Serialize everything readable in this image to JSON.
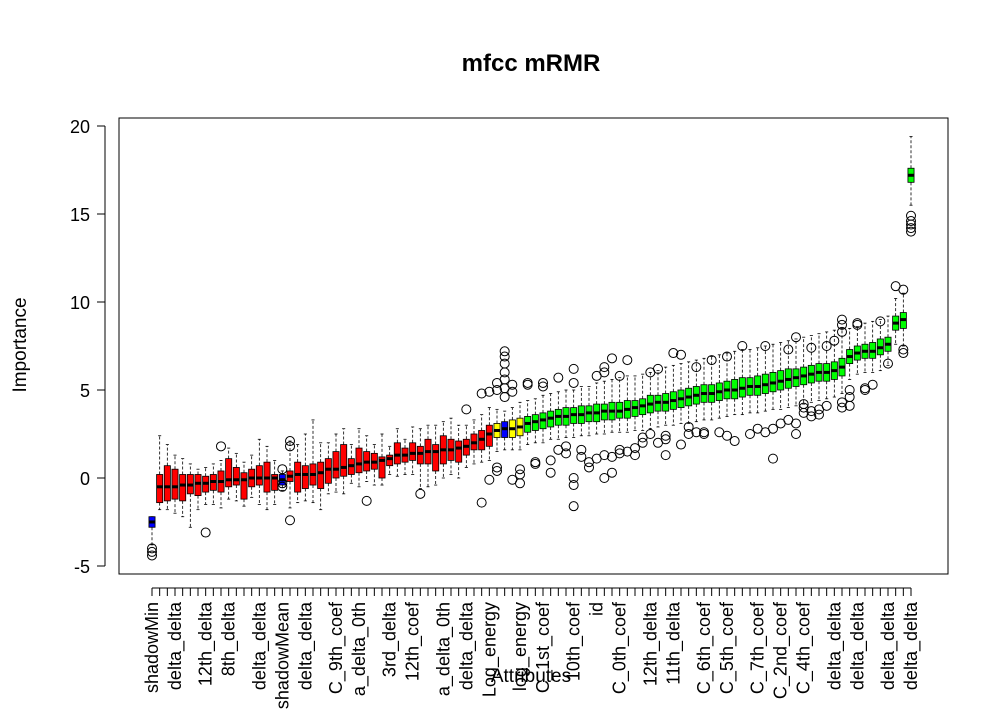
{
  "chart_data": {
    "type": "boxplot",
    "title": "mfcc mRMR",
    "xlabel": "Attributes",
    "ylabel": "Importance",
    "ylim": [
      -5,
      20
    ],
    "yticks": [
      "-5",
      "0",
      "5",
      "10",
      "15",
      "20"
    ],
    "colors": {
      "shadow": "#0000ff",
      "rejected": "#ff0000",
      "tentative": "#ffff00",
      "confirmed": "#00ff00"
    },
    "tick_labels": [
      "shadowMin",
      "delta_delta",
      "12th_delta",
      "8th_delta",
      "delta_delta",
      "shadowMean",
      "delta_delta",
      "C_9th_coef",
      "a_delta_0th",
      "3rd_delta",
      "12th_coef",
      "a_delta_0th",
      "delta_delta",
      "Log_energy",
      "log_energy",
      "C_1st_coef",
      "10th_coef",
      "id",
      "C_0th_coef",
      "12th_delta",
      "11th_delta",
      "C_6th_coef",
      "C_5th_coef",
      "C_7th_coef",
      "C_2nd_coef",
      "C_4th_coef",
      "delta_delta",
      "delta_delta",
      "delta_delta",
      "delta_delta"
    ],
    "boxes": [
      {
        "s": "shadow",
        "med": -2.5,
        "q1": -2.8,
        "q3": -2.2,
        "lo": -3.8,
        "hi": -2.2,
        "out": [
          -4.0,
          -4.2,
          -4.4
        ]
      },
      {
        "s": "rejected",
        "med": -0.5,
        "q1": -1.4,
        "q3": 0.2,
        "lo": -1.8,
        "hi": 2.4,
        "out": []
      },
      {
        "s": "rejected",
        "med": -0.5,
        "q1": -1.3,
        "q3": 0.7,
        "lo": -1.8,
        "hi": 1.9,
        "out": []
      },
      {
        "s": "rejected",
        "med": -0.5,
        "q1": -1.2,
        "q3": 0.5,
        "lo": -2.0,
        "hi": 1.3,
        "out": []
      },
      {
        "s": "rejected",
        "med": -0.4,
        "q1": -1.3,
        "q3": 0.2,
        "lo": -2.2,
        "hi": 1.1,
        "out": []
      },
      {
        "s": "rejected",
        "med": -0.4,
        "q1": -0.9,
        "q3": 0.2,
        "lo": -2.8,
        "hi": 0.8,
        "out": []
      },
      {
        "s": "rejected",
        "med": -0.3,
        "q1": -1.0,
        "q3": 0.2,
        "lo": -1.8,
        "hi": 0.5,
        "out": []
      },
      {
        "s": "rejected",
        "med": -0.3,
        "q1": -0.8,
        "q3": 0.1,
        "lo": -1.5,
        "hi": 0.6,
        "out": [
          -3.1
        ]
      },
      {
        "s": "rejected",
        "med": -0.2,
        "q1": -0.7,
        "q3": 0.2,
        "lo": -1.5,
        "hi": 0.8,
        "out": []
      },
      {
        "s": "rejected",
        "med": -0.2,
        "q1": -0.8,
        "q3": 0.4,
        "lo": -1.7,
        "hi": 1.0,
        "out": [
          1.8
        ]
      },
      {
        "s": "rejected",
        "med": -0.1,
        "q1": -0.5,
        "q3": 1.1,
        "lo": -1.2,
        "hi": 1.7,
        "out": []
      },
      {
        "s": "rejected",
        "med": -0.1,
        "q1": -0.4,
        "q3": 0.6,
        "lo": -1.3,
        "hi": 1.4,
        "out": []
      },
      {
        "s": "rejected",
        "med": -0.1,
        "q1": -1.2,
        "q3": 0.3,
        "lo": -1.6,
        "hi": 0.9,
        "out": []
      },
      {
        "s": "rejected",
        "med": 0.0,
        "q1": -0.5,
        "q3": 0.5,
        "lo": -1.1,
        "hi": 1.3,
        "out": []
      },
      {
        "s": "rejected",
        "med": 0.0,
        "q1": -0.4,
        "q3": 0.7,
        "lo": -1.5,
        "hi": 2.2,
        "out": []
      },
      {
        "s": "rejected",
        "med": 0.0,
        "q1": -0.8,
        "q3": 0.9,
        "lo": -1.8,
        "hi": 1.8,
        "out": []
      },
      {
        "s": "rejected",
        "med": 0.0,
        "q1": -0.7,
        "q3": 0.2,
        "lo": -1.5,
        "hi": 1.0,
        "out": []
      },
      {
        "s": "shadow",
        "med": -0.1,
        "q1": -0.4,
        "q3": 0.2,
        "lo": -0.7,
        "hi": 0.4,
        "out": [
          0.5,
          -0.3,
          -0.5
        ]
      },
      {
        "s": "rejected",
        "med": 0.1,
        "q1": -0.2,
        "q3": 0.4,
        "lo": -1.7,
        "hi": 2.1,
        "out": [
          -2.4,
          1.8,
          2.1
        ]
      },
      {
        "s": "rejected",
        "med": 0.2,
        "q1": -0.8,
        "q3": 0.9,
        "lo": -1.4,
        "hi": 1.9,
        "out": []
      },
      {
        "s": "rejected",
        "med": 0.2,
        "q1": -0.6,
        "q3": 0.7,
        "lo": -1.3,
        "hi": 2.5,
        "out": []
      },
      {
        "s": "rejected",
        "med": 0.2,
        "q1": -0.4,
        "q3": 0.8,
        "lo": -1.4,
        "hi": 3.3,
        "out": []
      },
      {
        "s": "rejected",
        "med": 0.3,
        "q1": -0.6,
        "q3": 0.9,
        "lo": -1.8,
        "hi": 2.0,
        "out": []
      },
      {
        "s": "rejected",
        "med": 0.5,
        "q1": -0.3,
        "q3": 1.1,
        "lo": -0.9,
        "hi": 2.0,
        "out": []
      },
      {
        "s": "rejected",
        "med": 0.5,
        "q1": 0.0,
        "q3": 1.5,
        "lo": -0.8,
        "hi": 2.5,
        "out": []
      },
      {
        "s": "rejected",
        "med": 0.6,
        "q1": 0.1,
        "q3": 1.9,
        "lo": -0.9,
        "hi": 2.8,
        "out": []
      },
      {
        "s": "rejected",
        "med": 0.7,
        "q1": 0.2,
        "q3": 1.1,
        "lo": -0.3,
        "hi": 1.9,
        "out": []
      },
      {
        "s": "rejected",
        "med": 0.8,
        "q1": 0.3,
        "q3": 1.7,
        "lo": -0.5,
        "hi": 2.8,
        "out": []
      },
      {
        "s": "rejected",
        "med": 0.9,
        "q1": 0.4,
        "q3": 1.5,
        "lo": -0.2,
        "hi": 2.4,
        "out": [
          -1.3
        ]
      },
      {
        "s": "rejected",
        "med": 0.9,
        "q1": 0.5,
        "q3": 1.4,
        "lo": -0.4,
        "hi": 1.9,
        "out": []
      },
      {
        "s": "rejected",
        "med": 1.0,
        "q1": 0.0,
        "q3": 1.2,
        "lo": -0.4,
        "hi": 2.5,
        "out": []
      },
      {
        "s": "rejected",
        "med": 1.1,
        "q1": 0.7,
        "q3": 1.3,
        "lo": 0.2,
        "hi": 1.8,
        "out": []
      },
      {
        "s": "rejected",
        "med": 1.3,
        "q1": 0.8,
        "q3": 2.0,
        "lo": 0.1,
        "hi": 2.8,
        "out": []
      },
      {
        "s": "rejected",
        "med": 1.3,
        "q1": 0.9,
        "q3": 1.7,
        "lo": 0.2,
        "hi": 2.2,
        "out": []
      },
      {
        "s": "rejected",
        "med": 1.4,
        "q1": 1.0,
        "q3": 2.0,
        "lo": 0.2,
        "hi": 2.9,
        "out": []
      },
      {
        "s": "rejected",
        "med": 1.4,
        "q1": 0.8,
        "q3": 1.8,
        "lo": -0.6,
        "hi": 2.8,
        "out": [
          -0.9
        ]
      },
      {
        "s": "rejected",
        "med": 1.5,
        "q1": 0.8,
        "q3": 2.2,
        "lo": -0.5,
        "hi": 3.0,
        "out": []
      },
      {
        "s": "rejected",
        "med": 1.5,
        "q1": 0.4,
        "q3": 1.9,
        "lo": -0.4,
        "hi": 3.0,
        "out": []
      },
      {
        "s": "rejected",
        "med": 1.6,
        "q1": 0.8,
        "q3": 2.4,
        "lo": 0.0,
        "hi": 3.2,
        "out": []
      },
      {
        "s": "rejected",
        "med": 1.6,
        "q1": 1.0,
        "q3": 2.2,
        "lo": 0.2,
        "hi": 3.4,
        "out": []
      },
      {
        "s": "rejected",
        "med": 1.7,
        "q1": 0.9,
        "q3": 2.1,
        "lo": 0.0,
        "hi": 3.0,
        "out": []
      },
      {
        "s": "rejected",
        "med": 1.8,
        "q1": 1.3,
        "q3": 2.2,
        "lo": 0.6,
        "hi": 3.0,
        "out": [
          3.9
        ]
      },
      {
        "s": "rejected",
        "med": 2.0,
        "q1": 1.6,
        "q3": 2.5,
        "lo": 0.8,
        "hi": 3.3,
        "out": []
      },
      {
        "s": "rejected",
        "med": 2.2,
        "q1": 1.6,
        "q3": 2.7,
        "lo": 0.9,
        "hi": 3.6,
        "out": [
          -1.4,
          4.8
        ]
      },
      {
        "s": "rejected",
        "med": 2.5,
        "q1": 1.8,
        "q3": 3.0,
        "lo": 1.0,
        "hi": 4.0,
        "out": [
          -0.1,
          4.9
        ]
      },
      {
        "s": "tentative",
        "med": 2.7,
        "q1": 2.3,
        "q3": 3.1,
        "lo": 1.5,
        "hi": 3.9,
        "out": [
          0.6,
          0.4,
          5.0,
          5.4
        ]
      },
      {
        "s": "shadow",
        "med": 2.8,
        "q1": 2.3,
        "q3": 3.2,
        "lo": 1.6,
        "hi": 3.8,
        "out": [
          4.6,
          5.1,
          5.6,
          6.0,
          6.5,
          7.2,
          6.9
        ]
      },
      {
        "s": "tentative",
        "med": 2.8,
        "q1": 2.3,
        "q3": 3.3,
        "lo": 1.6,
        "hi": 4.0,
        "out": [
          -0.1,
          4.9,
          5.3
        ]
      },
      {
        "s": "tentative",
        "med": 2.9,
        "q1": 2.4,
        "q3": 3.4,
        "lo": 1.6,
        "hi": 4.3,
        "out": [
          -0.3,
          0.2,
          0.5
        ]
      },
      {
        "s": "confirmed",
        "med": 3.1,
        "q1": 2.6,
        "q3": 3.5,
        "lo": 1.9,
        "hi": 4.4,
        "out": [
          5.3,
          5.4
        ]
      },
      {
        "s": "confirmed",
        "med": 3.2,
        "q1": 2.7,
        "q3": 3.6,
        "lo": 2.0,
        "hi": 4.5,
        "out": [
          0.8,
          0.9
        ]
      },
      {
        "s": "confirmed",
        "med": 3.3,
        "q1": 2.8,
        "q3": 3.7,
        "lo": 2.0,
        "hi": 4.7,
        "out": [
          5.2,
          5.4
        ]
      },
      {
        "s": "confirmed",
        "med": 3.4,
        "q1": 2.9,
        "q3": 3.8,
        "lo": 2.2,
        "hi": 4.8,
        "out": [
          0.3,
          1.0
        ]
      },
      {
        "s": "confirmed",
        "med": 3.5,
        "q1": 3.0,
        "q3": 3.9,
        "lo": 2.2,
        "hi": 4.9,
        "out": [
          5.7,
          1.6
        ]
      },
      {
        "s": "confirmed",
        "med": 3.5,
        "q1": 3.0,
        "q3": 4.0,
        "lo": 2.3,
        "hi": 5.0,
        "out": [
          1.4,
          1.8
        ]
      },
      {
        "s": "confirmed",
        "med": 3.6,
        "q1": 3.1,
        "q3": 4.0,
        "lo": 2.3,
        "hi": 5.0,
        "out": [
          -1.6,
          0.0,
          -0.4,
          5.4,
          6.2
        ]
      },
      {
        "s": "confirmed",
        "med": 3.6,
        "q1": 3.1,
        "q3": 4.1,
        "lo": 2.4,
        "hi": 5.2,
        "out": [
          1.2,
          1.6
        ]
      },
      {
        "s": "confirmed",
        "med": 3.7,
        "q1": 3.2,
        "q3": 4.1,
        "lo": 2.4,
        "hi": 5.2,
        "out": [
          0.6,
          0.9
        ]
      },
      {
        "s": "confirmed",
        "med": 3.7,
        "q1": 3.2,
        "q3": 4.2,
        "lo": 2.5,
        "hi": 5.4,
        "out": [
          5.8,
          1.1
        ]
      },
      {
        "s": "confirmed",
        "med": 3.8,
        "q1": 3.3,
        "q3": 4.2,
        "lo": 2.5,
        "hi": 5.5,
        "out": [
          0.0,
          6.0,
          6.3,
          1.3
        ]
      },
      {
        "s": "confirmed",
        "med": 3.8,
        "q1": 3.3,
        "q3": 4.3,
        "lo": 2.6,
        "hi": 5.6,
        "out": [
          0.3,
          1.2,
          6.8
        ]
      },
      {
        "s": "confirmed",
        "med": 3.8,
        "q1": 3.4,
        "q3": 4.3,
        "lo": 2.6,
        "hi": 5.7,
        "out": [
          1.4,
          1.6,
          5.8
        ]
      },
      {
        "s": "confirmed",
        "med": 3.9,
        "q1": 3.4,
        "q3": 4.4,
        "lo": 2.6,
        "hi": 5.8,
        "out": [
          6.7,
          1.5
        ]
      },
      {
        "s": "confirmed",
        "med": 4.0,
        "q1": 3.5,
        "q3": 4.4,
        "lo": 2.7,
        "hi": 5.8,
        "out": [
          1.3,
          1.7
        ]
      },
      {
        "s": "confirmed",
        "med": 4.1,
        "q1": 3.6,
        "q3": 4.5,
        "lo": 2.7,
        "hi": 5.9,
        "out": [
          2.0,
          2.3
        ]
      },
      {
        "s": "confirmed",
        "med": 4.2,
        "q1": 3.7,
        "q3": 4.7,
        "lo": 2.8,
        "hi": 6.0,
        "out": [
          6.0,
          2.5
        ]
      },
      {
        "s": "confirmed",
        "med": 4.3,
        "q1": 3.8,
        "q3": 4.7,
        "lo": 2.9,
        "hi": 6.1,
        "out": [
          2.0,
          6.2
        ]
      },
      {
        "s": "confirmed",
        "med": 4.3,
        "q1": 3.8,
        "q3": 4.8,
        "lo": 3.0,
        "hi": 6.3,
        "out": [
          1.3,
          2.2,
          2.4
        ]
      },
      {
        "s": "confirmed",
        "med": 4.4,
        "q1": 3.9,
        "q3": 4.9,
        "lo": 3.0,
        "hi": 6.4,
        "out": [
          7.1
        ]
      },
      {
        "s": "confirmed",
        "med": 4.5,
        "q1": 4.0,
        "q3": 5.0,
        "lo": 3.1,
        "hi": 6.5,
        "out": [
          1.9,
          7.0
        ]
      },
      {
        "s": "confirmed",
        "med": 4.6,
        "q1": 4.1,
        "q3": 5.1,
        "lo": 3.1,
        "hi": 6.6,
        "out": [
          2.5,
          2.9
        ]
      },
      {
        "s": "confirmed",
        "med": 4.7,
        "q1": 4.2,
        "q3": 5.2,
        "lo": 3.2,
        "hi": 6.7,
        "out": [
          2.6,
          6.3
        ]
      },
      {
        "s": "confirmed",
        "med": 4.8,
        "q1": 4.3,
        "q3": 5.3,
        "lo": 3.3,
        "hi": 6.8,
        "out": [
          2.6,
          2.5
        ]
      },
      {
        "s": "confirmed",
        "med": 4.8,
        "q1": 4.3,
        "q3": 5.3,
        "lo": 3.3,
        "hi": 6.9,
        "out": [
          6.7
        ]
      },
      {
        "s": "confirmed",
        "med": 4.9,
        "q1": 4.4,
        "q3": 5.4,
        "lo": 3.4,
        "hi": 7.0,
        "out": [
          2.6
        ]
      },
      {
        "s": "confirmed",
        "med": 5.0,
        "q1": 4.5,
        "q3": 5.5,
        "lo": 3.5,
        "hi": 7.1,
        "out": [
          2.4,
          6.9
        ]
      },
      {
        "s": "confirmed",
        "med": 5.0,
        "q1": 4.5,
        "q3": 5.6,
        "lo": 3.6,
        "hi": 7.2,
        "out": [
          2.1
        ]
      },
      {
        "s": "confirmed",
        "med": 5.1,
        "q1": 4.6,
        "q3": 5.7,
        "lo": 3.6,
        "hi": 7.3,
        "out": [
          7.5
        ]
      },
      {
        "s": "confirmed",
        "med": 5.2,
        "q1": 4.7,
        "q3": 5.7,
        "lo": 3.7,
        "hi": 7.3,
        "out": [
          2.5
        ]
      },
      {
        "s": "confirmed",
        "med": 5.2,
        "q1": 4.7,
        "q3": 5.8,
        "lo": 3.7,
        "hi": 7.4,
        "out": [
          2.8
        ]
      },
      {
        "s": "confirmed",
        "med": 5.3,
        "q1": 4.8,
        "q3": 5.9,
        "lo": 3.8,
        "hi": 7.5,
        "out": [
          2.6,
          7.5
        ]
      },
      {
        "s": "confirmed",
        "med": 5.4,
        "q1": 4.9,
        "q3": 6.0,
        "lo": 3.9,
        "hi": 7.6,
        "out": [
          1.1,
          2.8
        ]
      },
      {
        "s": "confirmed",
        "med": 5.5,
        "q1": 5.0,
        "q3": 6.1,
        "lo": 3.9,
        "hi": 7.7,
        "out": [
          3.1
        ]
      },
      {
        "s": "confirmed",
        "med": 5.6,
        "q1": 5.1,
        "q3": 6.2,
        "lo": 4.0,
        "hi": 7.8,
        "out": [
          3.3,
          7.3
        ]
      },
      {
        "s": "confirmed",
        "med": 5.7,
        "q1": 5.2,
        "q3": 6.2,
        "lo": 4.1,
        "hi": 7.9,
        "out": [
          2.5,
          3.1,
          8.0
        ]
      },
      {
        "s": "confirmed",
        "med": 5.8,
        "q1": 5.3,
        "q3": 6.3,
        "lo": 4.2,
        "hi": 8.0,
        "out": [
          3.7,
          4.0,
          4.2
        ]
      },
      {
        "s": "confirmed",
        "med": 5.9,
        "q1": 5.4,
        "q3": 6.4,
        "lo": 4.3,
        "hi": 8.1,
        "out": [
          3.5,
          3.8,
          7.4
        ]
      },
      {
        "s": "confirmed",
        "med": 6.0,
        "q1": 5.5,
        "q3": 6.5,
        "lo": 4.4,
        "hi": 8.2,
        "out": [
          3.6,
          3.9
        ]
      },
      {
        "s": "confirmed",
        "med": 6.0,
        "q1": 5.5,
        "q3": 6.5,
        "lo": 4.5,
        "hi": 8.3,
        "out": [
          4.1,
          7.5
        ]
      },
      {
        "s": "confirmed",
        "med": 6.1,
        "q1": 5.6,
        "q3": 6.6,
        "lo": 4.6,
        "hi": 8.4,
        "out": [
          7.8
        ]
      },
      {
        "s": "confirmed",
        "med": 6.3,
        "q1": 5.8,
        "q3": 6.8,
        "lo": 4.8,
        "hi": 8.5,
        "out": [
          4.0,
          4.3,
          8.3,
          8.7,
          9.0
        ]
      },
      {
        "s": "confirmed",
        "med": 6.9,
        "q1": 6.5,
        "q3": 7.3,
        "lo": 5.6,
        "hi": 8.5,
        "out": [
          4.1,
          4.6,
          5.0
        ]
      },
      {
        "s": "confirmed",
        "med": 7.1,
        "q1": 6.7,
        "q3": 7.5,
        "lo": 5.9,
        "hi": 8.6,
        "out": [
          8.7,
          8.8
        ]
      },
      {
        "s": "confirmed",
        "med": 7.2,
        "q1": 6.8,
        "q3": 7.6,
        "lo": 6.0,
        "hi": 8.8,
        "out": [
          5.0,
          5.1
        ]
      },
      {
        "s": "confirmed",
        "med": 7.2,
        "q1": 6.8,
        "q3": 7.7,
        "lo": 6.0,
        "hi": 8.9,
        "out": [
          5.3
        ]
      },
      {
        "s": "confirmed",
        "med": 7.4,
        "q1": 7.0,
        "q3": 7.9,
        "lo": 6.1,
        "hi": 9.0,
        "out": [
          8.9
        ]
      },
      {
        "s": "confirmed",
        "med": 7.6,
        "q1": 7.2,
        "q3": 8.0,
        "lo": 6.4,
        "hi": 9.2,
        "out": [
          6.5
        ]
      },
      {
        "s": "confirmed",
        "med": 8.8,
        "q1": 8.4,
        "q3": 9.2,
        "lo": 7.6,
        "hi": 10.2,
        "out": [
          10.9
        ]
      },
      {
        "s": "confirmed",
        "med": 9.0,
        "q1": 8.5,
        "q3": 9.4,
        "lo": 7.5,
        "hi": 10.5,
        "out": [
          7.1,
          7.3,
          10.7
        ]
      },
      {
        "s": "confirmed",
        "med": 17.2,
        "q1": 16.8,
        "q3": 17.6,
        "lo": 15.5,
        "hi": 19.4,
        "out": [
          14.0,
          14.2,
          14.4,
          14.6,
          14.9
        ]
      }
    ]
  }
}
